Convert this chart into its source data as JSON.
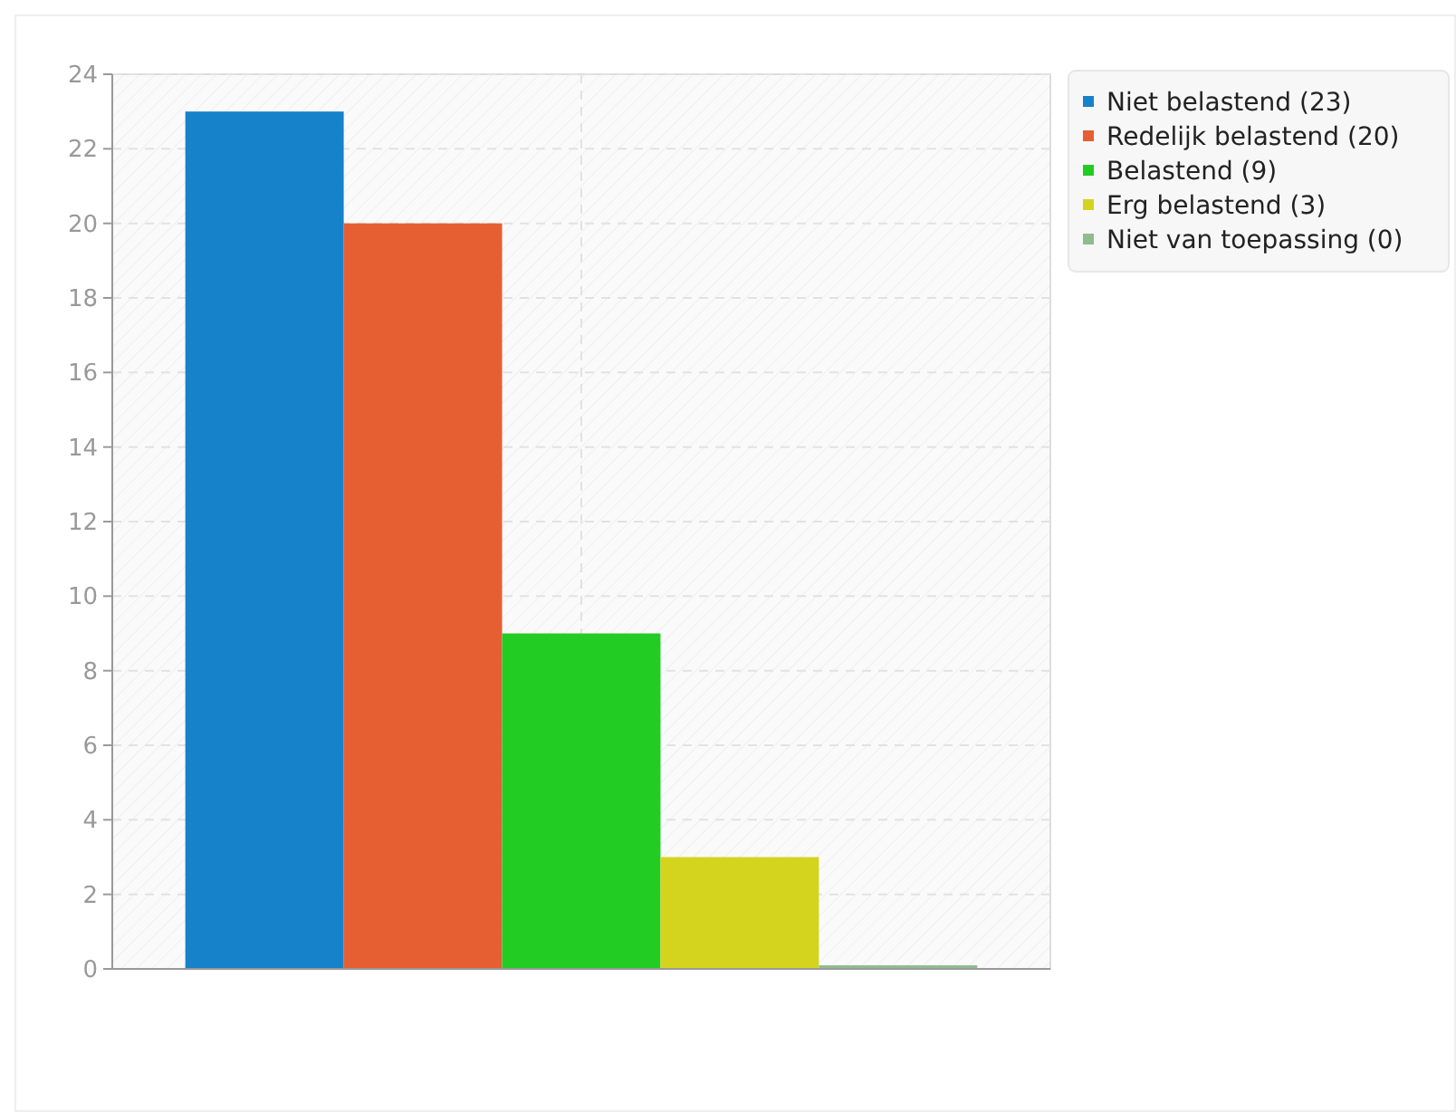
{
  "chart_data": {
    "type": "bar",
    "categories": [
      null
    ],
    "series": [
      {
        "name": "Niet belastend (23)",
        "color": "#1582c9",
        "values": [
          23
        ]
      },
      {
        "name": "Redelijk belastend (20)",
        "color": "#e65f33",
        "values": [
          20
        ]
      },
      {
        "name": "Belastend (9)",
        "color": "#22cc22",
        "values": [
          9
        ]
      },
      {
        "name": "Erg belastend (3)",
        "color": "#d4d41e",
        "values": [
          3
        ]
      },
      {
        "name": "Niet van toepassing (0)",
        "color": "#8fbc8f",
        "values": [
          0
        ]
      }
    ],
    "ylim": [
      0,
      24
    ],
    "yticks": [
      0,
      2,
      4,
      6,
      8,
      10,
      12,
      14,
      16,
      18,
      20,
      22,
      24
    ],
    "grid": true,
    "legend": "top right"
  }
}
